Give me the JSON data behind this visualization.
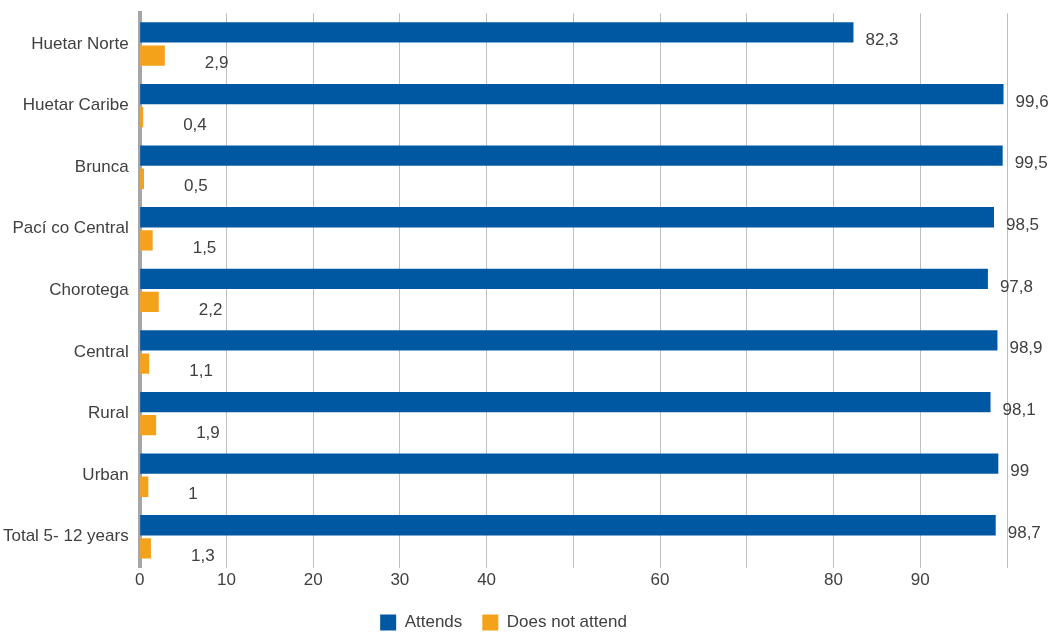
{
  "chart_data": {
    "type": "bar",
    "orientation": "horizontal",
    "categories": [
      "Huetar Norte",
      "Huetar Caribe",
      "Brunca",
      "Pací co Central",
      "Chorotega",
      "Central",
      "Rural",
      "Urban",
      "Total 5- 12 years"
    ],
    "series": [
      {
        "name": "Attends",
        "color": "#0058a3",
        "values": [
          82.3,
          99.6,
          99.5,
          98.5,
          97.8,
          98.9,
          98.1,
          99,
          98.7
        ],
        "value_labels": [
          "82,3",
          "99,6",
          "99,5",
          "98,5",
          "97,8",
          "98,9",
          "98,1",
          "99",
          "98,7"
        ]
      },
      {
        "name": "Does not attend",
        "color": "#f5a21b",
        "values": [
          2.9,
          0.4,
          0.5,
          1.5,
          2.2,
          1.1,
          1.9,
          1,
          1.3
        ],
        "value_labels": [
          "2,9",
          "0,4",
          "0,5",
          "1,5",
          "2,2",
          "1,1",
          "1,9",
          "1",
          "1,3"
        ]
      }
    ],
    "xlim": [
      0,
      100
    ],
    "xticks": [
      0,
      10,
      20,
      30,
      40,
      {
        "value": 50,
        "label": null
      },
      60,
      {
        "value": 70,
        "label": null
      },
      80,
      90,
      {
        "value": 100,
        "label": null
      }
    ],
    "grid": "x",
    "legend": "bottom"
  }
}
